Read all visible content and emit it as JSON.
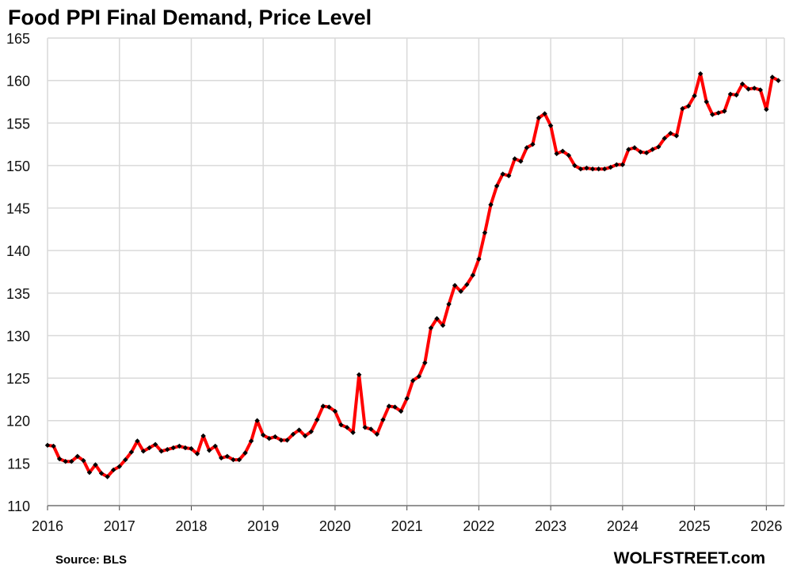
{
  "title": "Food PPI Final Demand, Price Level",
  "source": "Source: BLS",
  "brand": "WOLFSTREET.com",
  "colors": {
    "line": "#ff0000",
    "marker": "#000000",
    "grid": "#d9d9d9"
  },
  "chart_data": {
    "type": "line",
    "title": "Food PPI Final Demand, Price Level",
    "xlabel": "",
    "ylabel": "",
    "ylim": [
      110,
      165
    ],
    "xlim": [
      2016,
      2026.25
    ],
    "grid": true,
    "y_ticks": [
      "110",
      "115",
      "120",
      "125",
      "130",
      "135",
      "140",
      "145",
      "150",
      "155",
      "160",
      "165"
    ],
    "x_ticks": [
      "2016",
      "2017",
      "2018",
      "2019",
      "2020",
      "2021",
      "2022",
      "2023",
      "2024",
      "2025",
      "2026"
    ],
    "start": "2016-01",
    "frequency": "monthly",
    "series": [
      {
        "values": [
          117.1,
          117.0,
          115.5,
          115.2,
          115.2,
          115.8,
          115.3,
          113.9,
          114.8,
          113.8,
          113.4,
          114.2,
          114.6,
          115.4,
          116.3,
          117.6,
          116.4,
          116.8,
          117.2,
          116.4,
          116.6,
          116.8,
          117.0,
          116.8,
          116.7,
          116.1,
          118.2,
          116.5,
          117.0,
          115.6,
          115.8,
          115.4,
          115.4,
          116.2,
          117.6,
          120.0,
          118.3,
          117.9,
          118.1,
          117.7,
          117.7,
          118.4,
          118.9,
          118.2,
          118.7,
          120.1,
          121.7,
          121.6,
          121.1,
          119.5,
          119.2,
          118.6,
          125.4,
          119.2,
          119.0,
          118.4,
          120.1,
          121.7,
          121.6,
          121.1,
          122.6,
          124.7,
          125.2,
          126.8,
          130.9,
          132.0,
          131.2,
          133.7,
          135.9,
          135.2,
          136.0,
          137.1,
          139.0,
          142.1,
          145.4,
          147.6,
          149.0,
          148.8,
          150.8,
          150.5,
          152.1,
          152.5,
          155.6,
          156.1,
          154.7,
          151.4,
          151.7,
          151.2,
          150.0,
          149.6,
          149.7,
          149.6,
          149.6,
          149.6,
          149.8,
          150.1,
          150.1,
          151.9,
          152.1,
          151.6,
          151.5,
          151.9,
          152.2,
          153.2,
          153.8,
          153.5,
          156.7,
          157.0,
          158.2,
          160.8,
          157.5,
          156.0,
          156.2,
          156.4,
          158.4,
          158.3,
          159.6,
          159.0,
          159.1,
          158.9,
          156.6,
          160.4,
          160.0
        ]
      }
    ]
  }
}
